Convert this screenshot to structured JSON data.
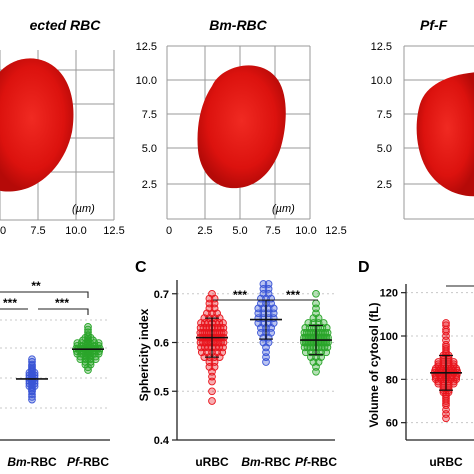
{
  "top_row": {
    "titles": {
      "urbc": "ected RBC",
      "bm": "Bm-RBC",
      "pf": "Pf-F"
    },
    "unit_label": "(µm)",
    "left_axis_ticks": [
      "0",
      "7.5",
      "10.0",
      "12.5"
    ],
    "mid_y_ticks": [
      "12.5",
      "10.0",
      "7.5",
      "5.0",
      "2.5"
    ],
    "mid_x_ticks": [
      "0",
      "2.5",
      "5.0",
      "7.5",
      "10.0",
      "12.5"
    ],
    "right_y_ticks": [
      "12.5",
      "10.0",
      "7.5",
      "5.0",
      "2.5"
    ],
    "cell_color": "#e0110f"
  },
  "panel_b": {
    "x_labels": [
      {
        "prefix": "",
        "italic": "Bm",
        "suffix": "-RBC"
      },
      {
        "prefix": "",
        "italic": "Pf",
        "suffix": "-RBC"
      }
    ],
    "significance": [
      "**",
      "***",
      "***"
    ]
  },
  "panel_c": {
    "letter": "C",
    "ylabel": "Sphericity index",
    "y_ticks": [
      "0.7",
      "0.6",
      "0.5",
      "0.4"
    ],
    "x_labels": [
      {
        "prefix": "uRBC",
        "italic": "",
        "suffix": ""
      },
      {
        "prefix": "",
        "italic": "Bm",
        "suffix": "-RBC"
      },
      {
        "prefix": "",
        "italic": "Pf",
        "suffix": "-RBC"
      }
    ],
    "significance": [
      "***",
      "***"
    ]
  },
  "panel_d": {
    "letter": "D",
    "ylabel": "Volume of cytosol (fL)",
    "y_ticks": [
      "120",
      "100",
      "80",
      "60"
    ],
    "x_label": "uRBC"
  },
  "chart_data": [
    {
      "type": "scatter",
      "panel": "C",
      "ylabel": "Sphericity index",
      "ylim": [
        0.4,
        0.72
      ],
      "categories": [
        "uRBC",
        "Bm-RBC",
        "Pf-RBC"
      ],
      "series": [
        {
          "name": "uRBC",
          "color": "#e8141c",
          "mean": 0.61,
          "sd": 0.04,
          "n": 90,
          "values": [
            0.48,
            0.5,
            0.52,
            0.53,
            0.54,
            0.55,
            0.55,
            0.56,
            0.56,
            0.57,
            0.57,
            0.57,
            0.58,
            0.58,
            0.58,
            0.58,
            0.59,
            0.59,
            0.59,
            0.59,
            0.59,
            0.6,
            0.6,
            0.6,
            0.6,
            0.6,
            0.6,
            0.6,
            0.61,
            0.61,
            0.61,
            0.61,
            0.61,
            0.61,
            0.61,
            0.61,
            0.61,
            0.61,
            0.62,
            0.62,
            0.62,
            0.62,
            0.62,
            0.62,
            0.62,
            0.62,
            0.62,
            0.63,
            0.63,
            0.63,
            0.63,
            0.63,
            0.63,
            0.63,
            0.64,
            0.64,
            0.64,
            0.64,
            0.64,
            0.64,
            0.65,
            0.65,
            0.65,
            0.65,
            0.66,
            0.66,
            0.66,
            0.67,
            0.67,
            0.68,
            0.68,
            0.69,
            0.69,
            0.7,
            0.59,
            0.6,
            0.61,
            0.62,
            0.58,
            0.63,
            0.6,
            0.61,
            0.62,
            0.57,
            0.64,
            0.59,
            0.61,
            0.6,
            0.62,
            0.63
          ]
        },
        {
          "name": "Bm-RBC",
          "color": "#3a55d6",
          "mean": 0.647,
          "sd": 0.04,
          "n": 42,
          "values": [
            0.56,
            0.57,
            0.58,
            0.59,
            0.6,
            0.6,
            0.61,
            0.61,
            0.62,
            0.62,
            0.63,
            0.63,
            0.63,
            0.64,
            0.64,
            0.64,
            0.65,
            0.65,
            0.65,
            0.65,
            0.66,
            0.66,
            0.66,
            0.67,
            0.67,
            0.67,
            0.68,
            0.68,
            0.68,
            0.69,
            0.69,
            0.69,
            0.7,
            0.7,
            0.71,
            0.71,
            0.72,
            0.72,
            0.62,
            0.66,
            0.64,
            0.67
          ]
        },
        {
          "name": "Pf-RBC",
          "color": "#2aa52a",
          "mean": 0.605,
          "sd": 0.03,
          "n": 80,
          "values": [
            0.54,
            0.55,
            0.56,
            0.56,
            0.57,
            0.57,
            0.58,
            0.58,
            0.58,
            0.59,
            0.59,
            0.59,
            0.59,
            0.59,
            0.6,
            0.6,
            0.6,
            0.6,
            0.6,
            0.6,
            0.6,
            0.6,
            0.61,
            0.61,
            0.61,
            0.61,
            0.61,
            0.61,
            0.61,
            0.61,
            0.61,
            0.62,
            0.62,
            0.62,
            0.62,
            0.62,
            0.62,
            0.63,
            0.63,
            0.63,
            0.63,
            0.64,
            0.64,
            0.64,
            0.65,
            0.65,
            0.66,
            0.67,
            0.68,
            0.7,
            0.6,
            0.61,
            0.59,
            0.62,
            0.6,
            0.61,
            0.6,
            0.62,
            0.59,
            0.61,
            0.6,
            0.61,
            0.62,
            0.6,
            0.59,
            0.61,
            0.6,
            0.62,
            0.58,
            0.63,
            0.6,
            0.61,
            0.59,
            0.62,
            0.61,
            0.6,
            0.58,
            0.63,
            0.57,
            0.64
          ]
        }
      ]
    },
    {
      "type": "scatter",
      "panel": "D",
      "ylabel": "Volume of cytosol (fL)",
      "ylim": [
        52,
        124
      ],
      "categories": [
        "uRBC"
      ],
      "series": [
        {
          "name": "uRBC",
          "color": "#e8141c",
          "mean": 83,
          "sd": 8,
          "n": 90,
          "values": [
            62,
            64,
            66,
            68,
            69,
            70,
            71,
            72,
            73,
            74,
            74,
            75,
            75,
            76,
            76,
            77,
            77,
            78,
            78,
            78,
            79,
            79,
            79,
            80,
            80,
            80,
            80,
            81,
            81,
            81,
            81,
            82,
            82,
            82,
            82,
            82,
            83,
            83,
            83,
            83,
            83,
            83,
            84,
            84,
            84,
            84,
            84,
            85,
            85,
            85,
            85,
            86,
            86,
            86,
            87,
            87,
            87,
            88,
            88,
            88,
            89,
            89,
            90,
            90,
            91,
            91,
            92,
            93,
            94,
            95,
            96,
            98,
            100,
            102,
            103,
            105,
            106,
            82,
            84,
            80,
            86,
            78,
            88,
            83,
            81,
            85,
            79,
            87,
            83,
            84
          ]
        }
      ]
    },
    {
      "type": "scatter",
      "panel": "B",
      "categories": [
        "Bm-RBC",
        "Pf-RBC"
      ],
      "series": [
        {
          "name": "Bm-RBC",
          "color": "#3a55d6",
          "n": 36,
          "values": [
            4.55,
            4.6,
            4.65,
            4.7,
            4.72,
            4.75,
            4.78,
            4.8,
            4.8,
            4.82,
            4.85,
            4.85,
            4.88,
            4.9,
            4.9,
            4.92,
            4.95,
            4.95,
            4.98,
            5.0,
            5.0,
            5.02,
            5.05,
            5.05,
            5.08,
            5.1,
            5.12,
            5.15,
            5.18,
            5.2,
            5.25,
            5.3,
            4.87,
            4.93,
            4.97,
            5.03
          ]
        },
        {
          "name": "Pf-RBC",
          "color": "#2aa52a",
          "n": 70,
          "values": [
            5.1,
            5.15,
            5.2,
            5.2,
            5.25,
            5.25,
            5.3,
            5.3,
            5.3,
            5.32,
            5.35,
            5.35,
            5.35,
            5.38,
            5.4,
            5.4,
            5.4,
            5.4,
            5.42,
            5.45,
            5.45,
            5.45,
            5.45,
            5.48,
            5.5,
            5.5,
            5.5,
            5.5,
            5.5,
            5.52,
            5.55,
            5.55,
            5.55,
            5.58,
            5.6,
            5.6,
            5.6,
            5.62,
            5.65,
            5.65,
            5.68,
            5.7,
            5.72,
            5.75,
            5.8,
            5.85,
            5.9,
            5.5,
            5.45,
            5.55,
            5.4,
            5.5,
            5.6,
            5.45,
            5.5,
            5.55,
            5.35,
            5.65,
            5.5,
            5.4,
            5.6,
            5.45,
            5.5,
            5.55,
            5.5,
            5.45,
            5.3,
            5.7,
            5.5,
            5.6
          ]
        }
      ]
    }
  ]
}
